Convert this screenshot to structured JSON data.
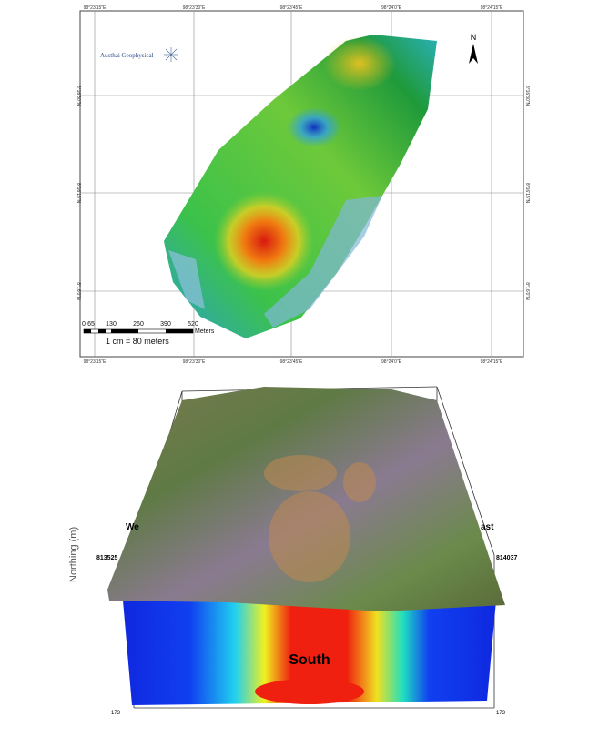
{
  "map": {
    "logo": "Austhai Geophysical",
    "north": "N",
    "top_labels": [
      "98°23'15\"E",
      "98°23'30\"E",
      "98°23'45\"E",
      "98°24'0\"E",
      "98°24'15\"E"
    ],
    "bottom_labels": [
      "98°23'15\"E",
      "98°23'30\"E",
      "98°23'45\"E",
      "98°24'0\"E",
      "98°24'15\"E"
    ],
    "left_labels": [
      "8°16'30\"N",
      "8°16'15\"N",
      "8°16'0\"N"
    ],
    "right_labels": [
      "8°16'30\"N",
      "8°16'15\"N",
      "8°16'0\"N"
    ],
    "scale": {
      "ticks": [
        "0",
        "65",
        "130",
        "260",
        "390",
        "520"
      ],
      "unit": "Meters",
      "ratio": "1 cm = 80 meters"
    }
  },
  "model": {
    "axis_label": "Northing (m)",
    "section_label": "South",
    "west": "We",
    "east": "ast",
    "left_coord": "813525",
    "right_coord": "814037",
    "bottom_left": "173",
    "bottom_right": "173"
  }
}
